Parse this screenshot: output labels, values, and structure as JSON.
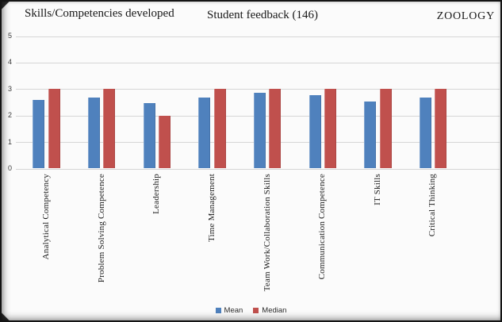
{
  "header": {
    "left_title": "Skills/Competencies developed",
    "center_title": "Student feedback (146)",
    "right_title": "ZOOLOGY"
  },
  "chart_data": {
    "type": "bar",
    "title": "Student feedback (146)",
    "subtitle": "Skills/Competencies developed",
    "annotation": "ZOOLOGY",
    "categories": [
      "Analytical Competency",
      "Problem Solving Competence",
      "Leadership",
      "Time Management",
      "Team Work/Collaboration Skills",
      "Communication Competence",
      "IT Skills",
      "Critical Thinking"
    ],
    "series": [
      {
        "name": "Mean",
        "color": "#4F81BD",
        "values": [
          2.6,
          2.68,
          2.48,
          2.68,
          2.86,
          2.78,
          2.54,
          2.69
        ]
      },
      {
        "name": "Median",
        "color": "#C0504D",
        "values": [
          3,
          3,
          2,
          3,
          3,
          3,
          3,
          3
        ]
      }
    ],
    "xlabel": "",
    "ylabel": "",
    "ylim": [
      0,
      5
    ],
    "yticks": [
      0,
      1,
      2,
      3,
      4,
      5
    ],
    "grid": true,
    "legend_position": "bottom"
  }
}
